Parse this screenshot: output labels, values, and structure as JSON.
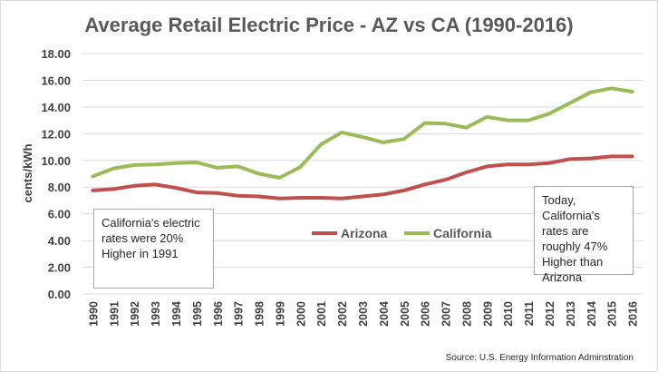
{
  "chart_data": {
    "type": "line",
    "title": "Average Retail Electric Price - AZ vs CA (1990-2016)",
    "ylabel": "cents/kWh",
    "xlabel": "",
    "ylim": [
      0,
      18
    ],
    "yticks": [
      "0.00",
      "2.00",
      "4.00",
      "6.00",
      "8.00",
      "10.00",
      "12.00",
      "14.00",
      "16.00",
      "18.00"
    ],
    "categories": [
      "1990",
      "1991",
      "1992",
      "1993",
      "1994",
      "1995",
      "1996",
      "1997",
      "1998",
      "1999",
      "2000",
      "2001",
      "2002",
      "2003",
      "2004",
      "2005",
      "2006",
      "2007",
      "2008",
      "2009",
      "2010",
      "2011",
      "2012",
      "2013",
      "2014",
      "2015",
      "2016"
    ],
    "series": [
      {
        "name": "Arizona",
        "color": "#c0504d",
        "values": [
          7.75,
          7.85,
          8.1,
          8.2,
          7.95,
          7.6,
          7.55,
          7.35,
          7.3,
          7.15,
          7.2,
          7.2,
          7.15,
          7.3,
          7.45,
          7.75,
          8.2,
          8.55,
          9.1,
          9.55,
          9.7,
          9.7,
          9.8,
          10.1,
          10.15,
          10.3,
          10.3
        ]
      },
      {
        "name": "California",
        "color": "#9bbb59",
        "values": [
          8.8,
          9.4,
          9.65,
          9.7,
          9.8,
          9.85,
          9.45,
          9.55,
          9.0,
          8.7,
          9.5,
          11.2,
          12.1,
          11.75,
          11.35,
          11.6,
          12.8,
          12.75,
          12.45,
          13.25,
          13.0,
          13.0,
          13.5,
          14.3,
          15.1,
          15.4,
          15.15
        ]
      }
    ],
    "legend_position": "center",
    "grid": true,
    "annotations": [
      "California's electric rates were 20% Higher in 1991",
      "Today, California's rates are roughly 47% Higher than Arizona"
    ],
    "source": "Source: U.S. Energy Information Adminstration"
  }
}
